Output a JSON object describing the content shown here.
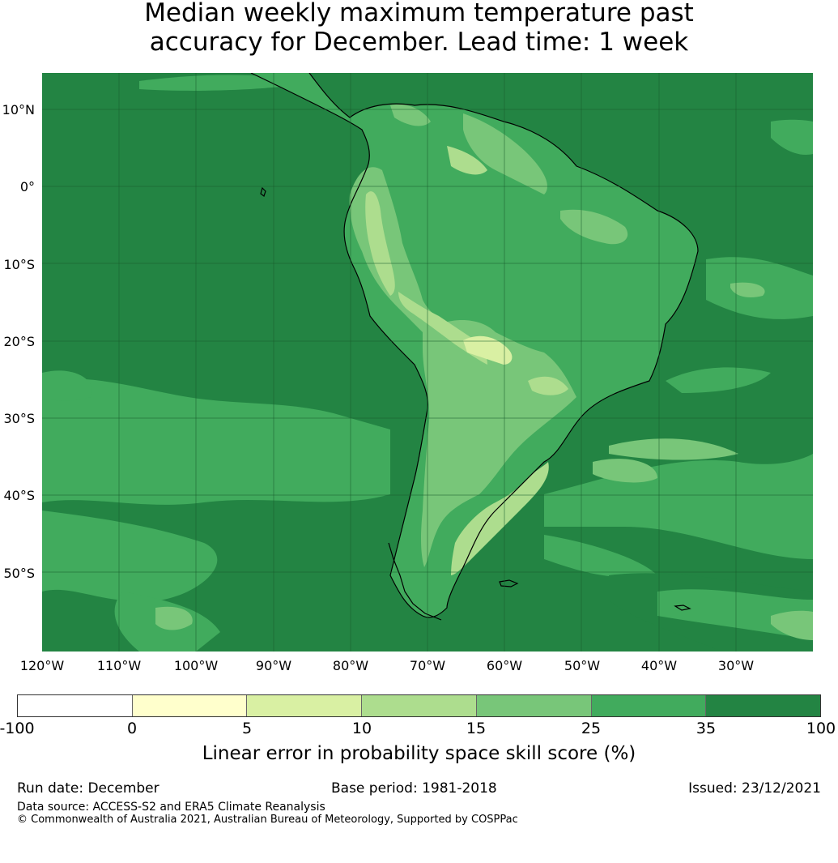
{
  "title": {
    "line1": "Median weekly maximum temperature past",
    "line2": "accuracy for December. Lead time: 1 week"
  },
  "map": {
    "lat_labels": [
      "10°N",
      "0°",
      "10°S",
      "20°S",
      "30°S",
      "40°S",
      "50°S"
    ],
    "lon_labels": [
      "120°W",
      "110°W",
      "100°W",
      "90°W",
      "80°W",
      "70°W",
      "60°W",
      "50°W",
      "40°W",
      "30°W"
    ],
    "extent": {
      "lon_min": -120,
      "lon_max": -20,
      "lat_min": -60,
      "lat_max": 15
    },
    "background_color": "#238b45"
  },
  "colorbar": {
    "tick_labels": [
      "-100",
      "0",
      "5",
      "10",
      "15",
      "25",
      "35",
      "100"
    ],
    "colors": [
      "#ffffff",
      "#ffffcc",
      "#d9f0a3",
      "#addd8e",
      "#78c679",
      "#41ab5d",
      "#238443"
    ],
    "label": "Linear error in probability space skill score (%)"
  },
  "footer": {
    "run_date": "Run date: December",
    "base_period": "Base period: 1981-2018",
    "issued": "Issued: 23/12/2021",
    "data_source": "Data source: ACCESS-S2 and ERA5 Climate Reanalysis",
    "copyright": "© Commonwealth of Australia 2021, Australian Bureau of Meteorology, Supported by COSPPac"
  }
}
